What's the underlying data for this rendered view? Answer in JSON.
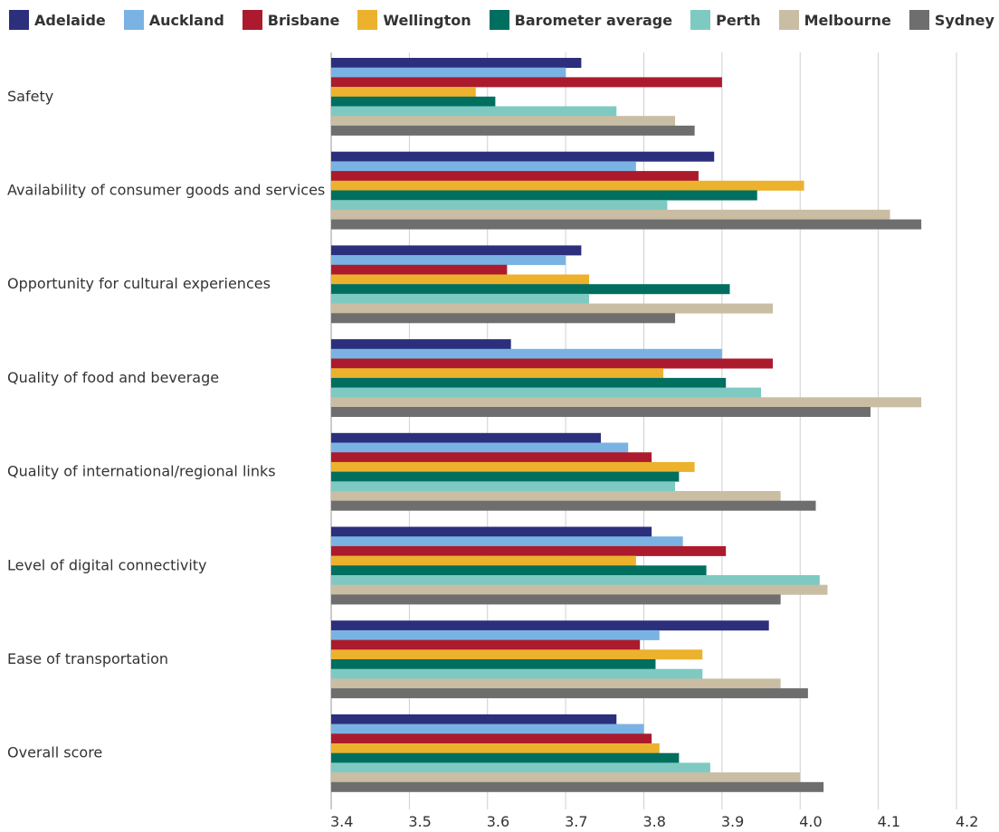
{
  "chart_data": {
    "type": "bar",
    "orientation": "horizontal",
    "title": "",
    "xlabel": "",
    "ylabel": "",
    "xlim": [
      3.4,
      4.2
    ],
    "x_ticks": [
      "3.4",
      "3.5",
      "3.6",
      "3.7",
      "3.8",
      "3.9",
      "4.0",
      "4.1",
      "4.2"
    ],
    "grid": "vertical",
    "legend_position": "top",
    "categories": [
      "Safety",
      "Availability of consumer goods and services",
      "Opportunity for cultural experiences",
      "Quality of food and beverage",
      "Quality of international/regional links",
      "Level of digital connectivity",
      "Ease of transportation",
      "Overall score"
    ],
    "series": [
      {
        "name": "Adelaide",
        "color": "#2b2f7c",
        "values": [
          3.72,
          3.89,
          3.72,
          3.63,
          3.745,
          3.81,
          3.96,
          3.765
        ]
      },
      {
        "name": "Auckland",
        "color": "#7ab3e3",
        "values": [
          3.7,
          3.79,
          3.7,
          3.9,
          3.78,
          3.85,
          3.82,
          3.8
        ]
      },
      {
        "name": "Brisbane",
        "color": "#ab1b2d",
        "values": [
          3.9,
          3.87,
          3.625,
          3.965,
          3.81,
          3.905,
          3.795,
          3.81
        ]
      },
      {
        "name": "Wellington",
        "color": "#ecb22e",
        "values": [
          3.585,
          4.005,
          3.73,
          3.825,
          3.865,
          3.79,
          3.875,
          3.82
        ]
      },
      {
        "name": "Barometer average",
        "color": "#006f5f",
        "values": [
          3.61,
          3.945,
          3.91,
          3.905,
          3.845,
          3.88,
          3.815,
          3.845
        ]
      },
      {
        "name": "Perth",
        "color": "#7ecac2",
        "values": [
          3.765,
          3.83,
          3.73,
          3.95,
          3.84,
          4.025,
          3.875,
          3.885
        ]
      },
      {
        "name": "Melbourne",
        "color": "#c9bda3",
        "values": [
          3.84,
          4.115,
          3.965,
          4.155,
          3.975,
          4.035,
          3.975,
          4.0
        ]
      },
      {
        "name": "Sydney",
        "color": "#6e6e6e",
        "values": [
          3.865,
          4.155,
          3.84,
          4.09,
          4.02,
          3.975,
          4.01,
          4.03
        ]
      }
    ]
  }
}
